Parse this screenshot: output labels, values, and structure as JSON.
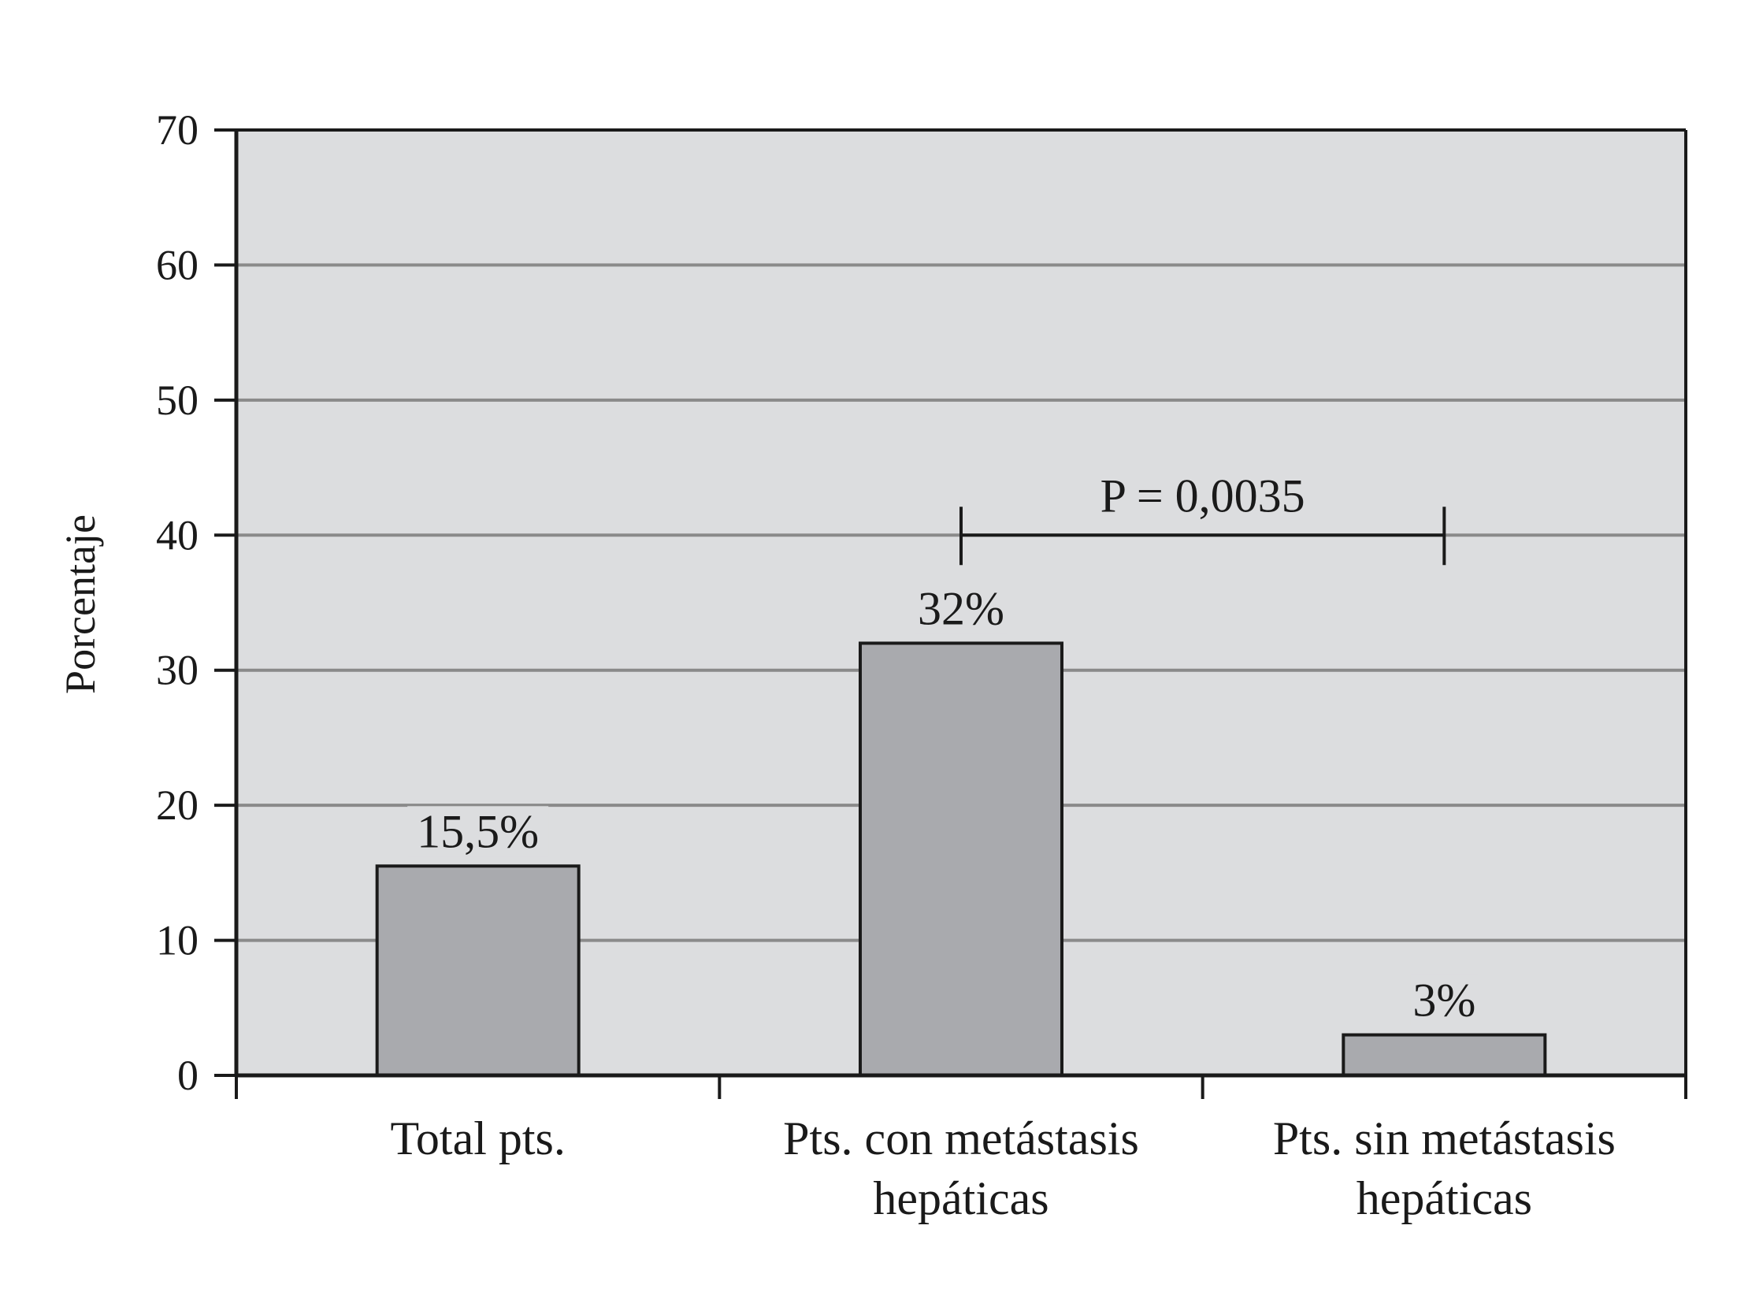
{
  "chart_data": {
    "type": "bar",
    "title": "",
    "ylabel": "Porcentaje",
    "xlabel": "",
    "ylim": [
      0,
      70
    ],
    "yticks": [
      0,
      10,
      20,
      30,
      40,
      50,
      60,
      70
    ],
    "grid": true,
    "categories": [
      [
        "Total pts."
      ],
      [
        "Pts. con metástasis",
        "hepáticas"
      ],
      [
        "Pts. sin metástasis",
        "hepáticas"
      ]
    ],
    "values": [
      15.5,
      32,
      3
    ],
    "data_labels": [
      "15,5%",
      "32%",
      "3%"
    ],
    "annotation": {
      "text": "P = 0,0035",
      "from_category": 1,
      "to_category": 2,
      "y": 40
    },
    "colors": {
      "plot_bg": "#dcdddf",
      "bar_fill": "#a9aaae",
      "bar_stroke": "#1a1a1a",
      "grid": "#8a8a8a",
      "axis": "#1a1a1a"
    }
  }
}
